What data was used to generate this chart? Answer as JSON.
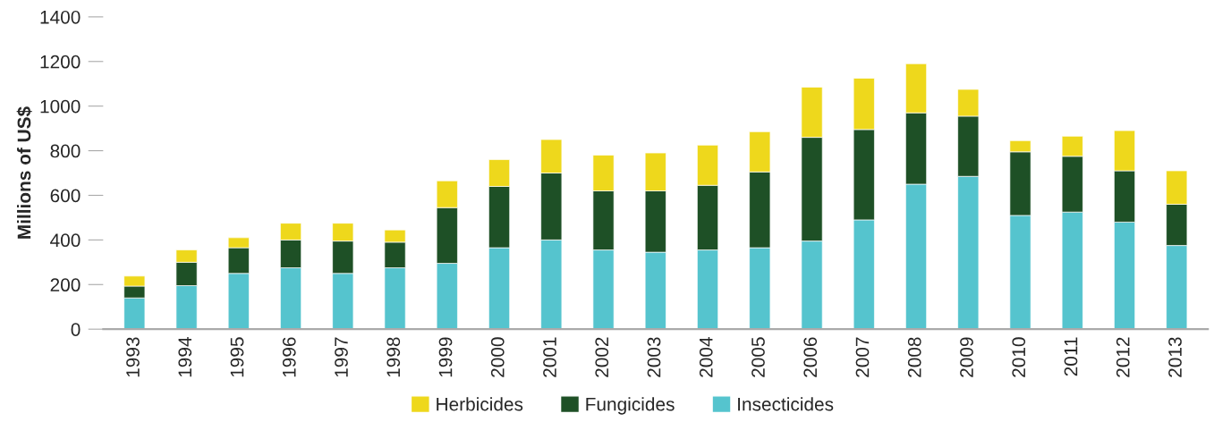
{
  "chart_data": {
    "type": "bar",
    "stacked": true,
    "ylabel": "Millions of US$",
    "categories": [
      "1993",
      "1994",
      "1995",
      "1996",
      "1997",
      "1998",
      "1999",
      "2000",
      "2001",
      "2002",
      "2003",
      "2004",
      "2005",
      "2006",
      "2007",
      "2008",
      "2009",
      "2010",
      "2011",
      "2012",
      "2013"
    ],
    "series": [
      {
        "name": "Insecticides",
        "color": "#55c4ce",
        "values": [
          140,
          195,
          250,
          275,
          250,
          275,
          295,
          365,
          400,
          355,
          345,
          355,
          365,
          395,
          490,
          650,
          685,
          510,
          525,
          480,
          375
        ]
      },
      {
        "name": "Fungicides",
        "color": "#1e5026",
        "values": [
          53,
          105,
          115,
          125,
          145,
          115,
          250,
          275,
          300,
          265,
          275,
          290,
          340,
          465,
          405,
          320,
          270,
          285,
          250,
          230,
          185
        ]
      },
      {
        "name": "Herbicides",
        "color": "#eed81c",
        "values": [
          45,
          55,
          45,
          75,
          80,
          55,
          120,
          120,
          150,
          160,
          170,
          180,
          180,
          225,
          230,
          220,
          120,
          50,
          90,
          180,
          150
        ]
      }
    ],
    "ylim": [
      0,
      1400
    ],
    "yticks": [
      0,
      200,
      400,
      600,
      800,
      1000,
      1200,
      1400
    ],
    "grid": false,
    "legend": "bottom"
  }
}
